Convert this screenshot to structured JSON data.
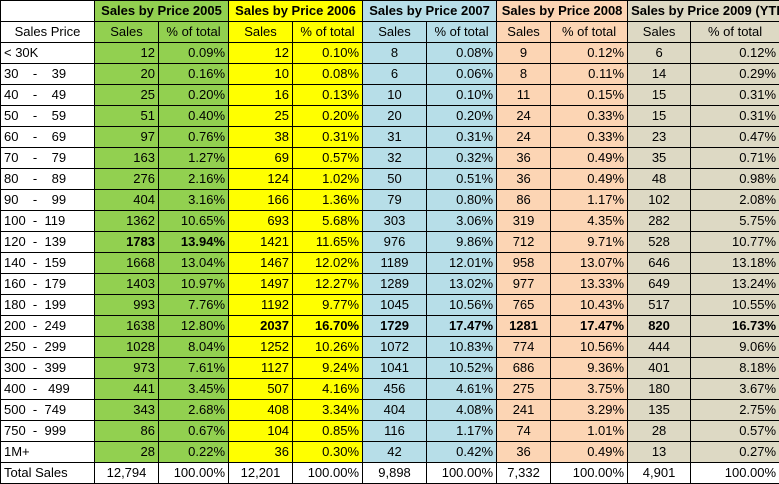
{
  "headers": {
    "y2005": "Sales by Price 2005",
    "y2006": "Sales by Price 2006",
    "y2007": "Sales by Price 2007",
    "y2008": "Sales by Price 2008",
    "y2009": "Sales by Price 2009 (YTD)",
    "sales_price": "Sales Price",
    "sales": "Sales",
    "pct": "% of total"
  },
  "rows": [
    {
      "label": "< 30K",
      "v": [
        "12",
        "0.09%",
        "12",
        "0.10%",
        "8",
        "0.08%",
        "9",
        "0.12%",
        "6",
        "0.12%"
      ]
    },
    {
      "label": "30    -    39",
      "v": [
        "20",
        "0.16%",
        "10",
        "0.08%",
        "6",
        "0.06%",
        "8",
        "0.11%",
        "14",
        "0.29%"
      ]
    },
    {
      "label": "40    -    49",
      "v": [
        "25",
        "0.20%",
        "16",
        "0.13%",
        "10",
        "0.10%",
        "11",
        "0.15%",
        "15",
        "0.31%"
      ]
    },
    {
      "label": "50    -    59",
      "v": [
        "51",
        "0.40%",
        "25",
        "0.20%",
        "20",
        "0.20%",
        "24",
        "0.33%",
        "15",
        "0.31%"
      ]
    },
    {
      "label": "60    -    69",
      "v": [
        "97",
        "0.76%",
        "38",
        "0.31%",
        "31",
        "0.31%",
        "24",
        "0.33%",
        "23",
        "0.47%"
      ]
    },
    {
      "label": "70    -    79",
      "v": [
        "163",
        "1.27%",
        "69",
        "0.57%",
        "32",
        "0.32%",
        "36",
        "0.49%",
        "35",
        "0.71%"
      ]
    },
    {
      "label": "80    -    89",
      "v": [
        "276",
        "2.16%",
        "124",
        "1.02%",
        "50",
        "0.51%",
        "36",
        "0.49%",
        "48",
        "0.98%"
      ]
    },
    {
      "label": "90    -    99",
      "v": [
        "404",
        "3.16%",
        "166",
        "1.36%",
        "79",
        "0.80%",
        "86",
        "1.17%",
        "102",
        "2.08%"
      ]
    },
    {
      "label": "100  -  119",
      "v": [
        "1362",
        "10.65%",
        "693",
        "5.68%",
        "303",
        "3.06%",
        "319",
        "4.35%",
        "282",
        "5.75%"
      ]
    },
    {
      "label": "120  -  139",
      "v": [
        "1783",
        "13.94%",
        "1421",
        "11.65%",
        "976",
        "9.86%",
        "712",
        "9.71%",
        "528",
        "10.77%"
      ]
    },
    {
      "label": "140  -  159",
      "v": [
        "1668",
        "13.04%",
        "1467",
        "12.02%",
        "1189",
        "12.01%",
        "958",
        "13.07%",
        "646",
        "13.18%"
      ]
    },
    {
      "label": "160  -  179",
      "v": [
        "1403",
        "10.97%",
        "1497",
        "12.27%",
        "1289",
        "13.02%",
        "977",
        "13.33%",
        "649",
        "13.24%"
      ]
    },
    {
      "label": "180  -  199",
      "v": [
        "993",
        "7.76%",
        "1192",
        "9.77%",
        "1045",
        "10.56%",
        "765",
        "10.43%",
        "517",
        "10.55%"
      ]
    },
    {
      "label": "200  -  249",
      "v": [
        "1638",
        "12.80%",
        "2037",
        "16.70%",
        "1729",
        "17.47%",
        "1281",
        "17.47%",
        "820",
        "16.73%"
      ]
    },
    {
      "label": "250  -  299",
      "v": [
        "1028",
        "8.04%",
        "1252",
        "10.26%",
        "1072",
        "10.83%",
        "774",
        "10.56%",
        "444",
        "9.06%"
      ]
    },
    {
      "label": "300  -  399",
      "v": [
        "973",
        "7.61%",
        "1127",
        "9.24%",
        "1041",
        "10.52%",
        "686",
        "9.36%",
        "401",
        "8.18%"
      ]
    },
    {
      "label": "400  -   499",
      "v": [
        "441",
        "3.45%",
        "507",
        "4.16%",
        "456",
        "4.61%",
        "275",
        "3.75%",
        "180",
        "3.67%"
      ]
    },
    {
      "label": "500  -  749",
      "v": [
        "343",
        "2.68%",
        "408",
        "3.34%",
        "404",
        "4.08%",
        "241",
        "3.29%",
        "135",
        "2.75%"
      ]
    },
    {
      "label": "750  -  999",
      "v": [
        "86",
        "0.67%",
        "104",
        "0.85%",
        "116",
        "1.17%",
        "74",
        "1.01%",
        "28",
        "0.57%"
      ]
    },
    {
      "label": "1M+",
      "v": [
        "28",
        "0.22%",
        "36",
        "0.30%",
        "42",
        "0.42%",
        "36",
        "0.49%",
        "13",
        "0.27%"
      ]
    }
  ],
  "bold": [
    [
      false,
      false,
      false,
      false,
      false,
      false,
      false,
      false,
      false,
      false
    ],
    [
      false,
      false,
      false,
      false,
      false,
      false,
      false,
      false,
      false,
      false
    ],
    [
      false,
      false,
      false,
      false,
      false,
      false,
      false,
      false,
      false,
      false
    ],
    [
      false,
      false,
      false,
      false,
      false,
      false,
      false,
      false,
      false,
      false
    ],
    [
      false,
      false,
      false,
      false,
      false,
      false,
      false,
      false,
      false,
      false
    ],
    [
      false,
      false,
      false,
      false,
      false,
      false,
      false,
      false,
      false,
      false
    ],
    [
      false,
      false,
      false,
      false,
      false,
      false,
      false,
      false,
      false,
      false
    ],
    [
      false,
      false,
      false,
      false,
      false,
      false,
      false,
      false,
      false,
      false
    ],
    [
      false,
      false,
      false,
      false,
      false,
      false,
      false,
      false,
      false,
      false
    ],
    [
      true,
      true,
      false,
      false,
      false,
      false,
      false,
      false,
      false,
      false
    ],
    [
      false,
      false,
      false,
      false,
      false,
      false,
      false,
      false,
      false,
      false
    ],
    [
      false,
      false,
      false,
      false,
      false,
      false,
      false,
      false,
      false,
      false
    ],
    [
      false,
      false,
      false,
      false,
      false,
      false,
      false,
      false,
      false,
      false
    ],
    [
      false,
      false,
      true,
      true,
      true,
      true,
      true,
      true,
      true,
      true
    ],
    [
      false,
      false,
      false,
      false,
      false,
      false,
      false,
      false,
      false,
      false
    ],
    [
      false,
      false,
      false,
      false,
      false,
      false,
      false,
      false,
      false,
      false
    ],
    [
      false,
      false,
      false,
      false,
      false,
      false,
      false,
      false,
      false,
      false
    ],
    [
      false,
      false,
      false,
      false,
      false,
      false,
      false,
      false,
      false,
      false
    ],
    [
      false,
      false,
      false,
      false,
      false,
      false,
      false,
      false,
      false,
      false
    ],
    [
      false,
      false,
      false,
      false,
      false,
      false,
      false,
      false,
      false,
      false
    ]
  ],
  "total": {
    "label": "Total Sales",
    "v": [
      "12,794",
      "100.00%",
      "12,201",
      "100.00%",
      "9,898",
      "100.00%",
      "7,332",
      "100.00%",
      "4,901",
      "100.00%"
    ]
  },
  "colors": {
    "y2005": "#92d050",
    "y2006": "#ffff00",
    "y2007": "#b7dee8",
    "y2008": "#fcd5b4",
    "y2009": "#ddd9c4"
  }
}
